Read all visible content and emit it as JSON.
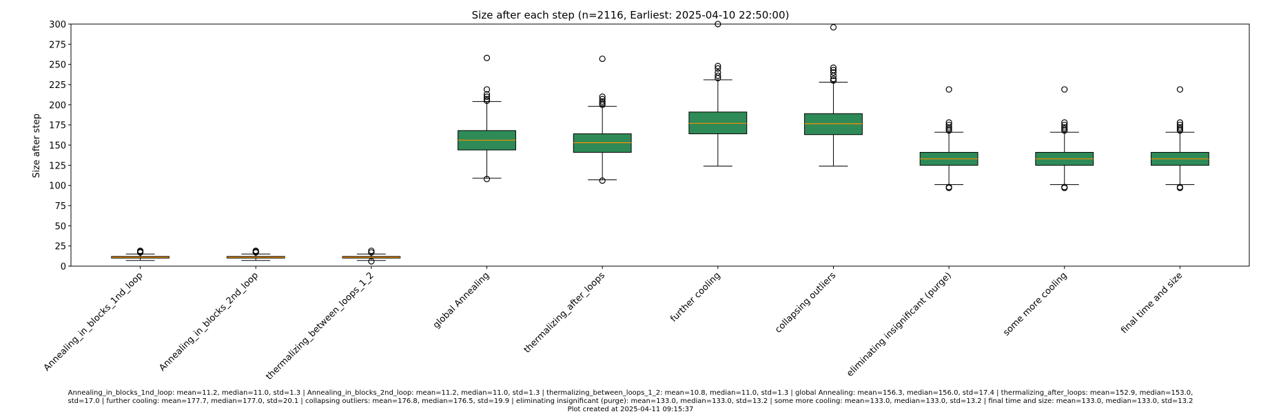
{
  "chart_data": {
    "type": "box",
    "title": "Size after each step (n=2116, Earliest: 2025-04-10 22:50:00)",
    "xlabel": "",
    "ylabel": "Size after step",
    "ylim": [
      0,
      300
    ],
    "yticks": [
      0,
      25,
      50,
      75,
      100,
      125,
      150,
      175,
      200,
      225,
      250,
      275,
      300
    ],
    "grid": false,
    "colors": {
      "box_fill": "#2e8b57",
      "median": "#ff8c00",
      "edge": "#000000"
    },
    "categories": [
      "Annealing_in_blocks_1nd_loop",
      "Annealing_in_blocks_2nd_loop",
      "thermalizing_between_loops_1_2",
      "global Annealing",
      "thermalizing_after_loops",
      "further cooling",
      "collapsing outliers",
      "eliminating insignificant (purge)",
      "some more cooling",
      "final time and size"
    ],
    "boxes": [
      {
        "whisker_low": 7,
        "q1": 10,
        "median": 11,
        "q3": 12,
        "whisker_high": 15,
        "outliers": [
          17,
          18,
          19
        ]
      },
      {
        "whisker_low": 7,
        "q1": 10,
        "median": 11,
        "q3": 12,
        "whisker_high": 15,
        "outliers": [
          17,
          18,
          19
        ]
      },
      {
        "whisker_low": 7,
        "q1": 10,
        "median": 11,
        "q3": 12,
        "whisker_high": 15,
        "outliers": [
          6,
          17,
          19
        ]
      },
      {
        "whisker_low": 109,
        "q1": 144,
        "median": 156,
        "q3": 168,
        "whisker_high": 204,
        "outliers": [
          108,
          205,
          207,
          210,
          213,
          219,
          258
        ]
      },
      {
        "whisker_low": 107,
        "q1": 141,
        "median": 153,
        "q3": 164,
        "whisker_high": 198,
        "outliers": [
          106,
          200,
          202,
          204,
          207,
          210,
          257
        ]
      },
      {
        "whisker_low": 124,
        "q1": 164,
        "median": 177,
        "q3": 191,
        "whisker_high": 231,
        "outliers": [
          233,
          236,
          240,
          245,
          248,
          300
        ]
      },
      {
        "whisker_low": 124,
        "q1": 163,
        "median": 176.5,
        "q3": 189,
        "whisker_high": 228,
        "outliers": [
          230,
          232,
          236,
          240,
          243,
          246,
          296
        ]
      },
      {
        "whisker_low": 101,
        "q1": 125,
        "median": 133,
        "q3": 141,
        "whisker_high": 166,
        "outliers": [
          97,
          98,
          168,
          170,
          172,
          175,
          178,
          219
        ]
      },
      {
        "whisker_low": 101,
        "q1": 125,
        "median": 133,
        "q3": 141,
        "whisker_high": 166,
        "outliers": [
          97,
          98,
          168,
          170,
          172,
          175,
          178,
          219
        ]
      },
      {
        "whisker_low": 101,
        "q1": 125,
        "median": 133,
        "q3": 141,
        "whisker_high": 166,
        "outliers": [
          97,
          98,
          168,
          170,
          172,
          175,
          178,
          219
        ]
      }
    ],
    "stats_line_1": "Annealing_in_blocks_1nd_loop: mean=11.2, median=11.0, std=1.3 | Annealing_in_blocks_2nd_loop: mean=11.2, median=11.0, std=1.3 | thermalizing_between_loops_1_2: mean=10.8, median=11.0, std=1.3 | global Annealing: mean=156.3, median=156.0, std=17.4 | thermalizing_after_loops: mean=152.9, median=153.0,",
    "stats_line_2": "std=17.0 | further cooling: mean=177.7, median=177.0, std=20.1 | collapsing outliers: mean=176.8, median=176.5, std=19.9 | eliminating insignificant (purge): mean=133.0, median=133.0, std=13.2 | some more cooling: mean=133.0, median=133.0, std=13.2 | final time and size: mean=133.0, median=133.0, std=13.2",
    "created": "Plot created at 2025-04-11 09:15:37"
  }
}
